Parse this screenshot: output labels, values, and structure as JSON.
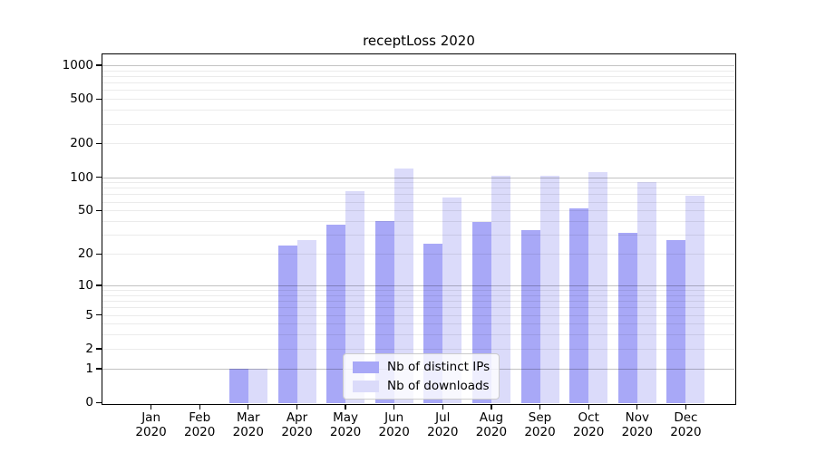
{
  "chart_data": {
    "type": "bar",
    "title": "receptLoss 2020",
    "categories": [
      "Jan",
      "Feb",
      "Mar",
      "Apr",
      "May",
      "Jun",
      "Jul",
      "Aug",
      "Sep",
      "Oct",
      "Nov",
      "Dec"
    ],
    "category_year": "2020",
    "series": [
      {
        "name": "Nb of distinct IPs",
        "color": "#a8a8f7",
        "values": [
          0,
          0,
          1,
          24,
          37,
          40,
          25,
          39,
          33,
          52,
          31,
          27
        ]
      },
      {
        "name": "Nb of downloads",
        "color": "#dbdbfa",
        "values": [
          0,
          0,
          1,
          27,
          75,
          120,
          66,
          102,
          102,
          110,
          90,
          68
        ]
      }
    ],
    "xlabel": "",
    "ylabel": "",
    "yaxis_scale": "log1p",
    "yticks": [
      1000,
      500,
      200,
      100,
      50,
      20,
      10,
      5,
      2,
      1,
      0
    ],
    "ylim": [
      0,
      1270
    ],
    "grid": true,
    "grid_above_bars": true,
    "legend_position": "lower center",
    "colors": {
      "major_gridline": "rgba(0,0,0,0.24)",
      "minor_gridline": "rgba(0,0,0,0.08)",
      "axis": "#000000",
      "background": "#ffffff"
    }
  }
}
